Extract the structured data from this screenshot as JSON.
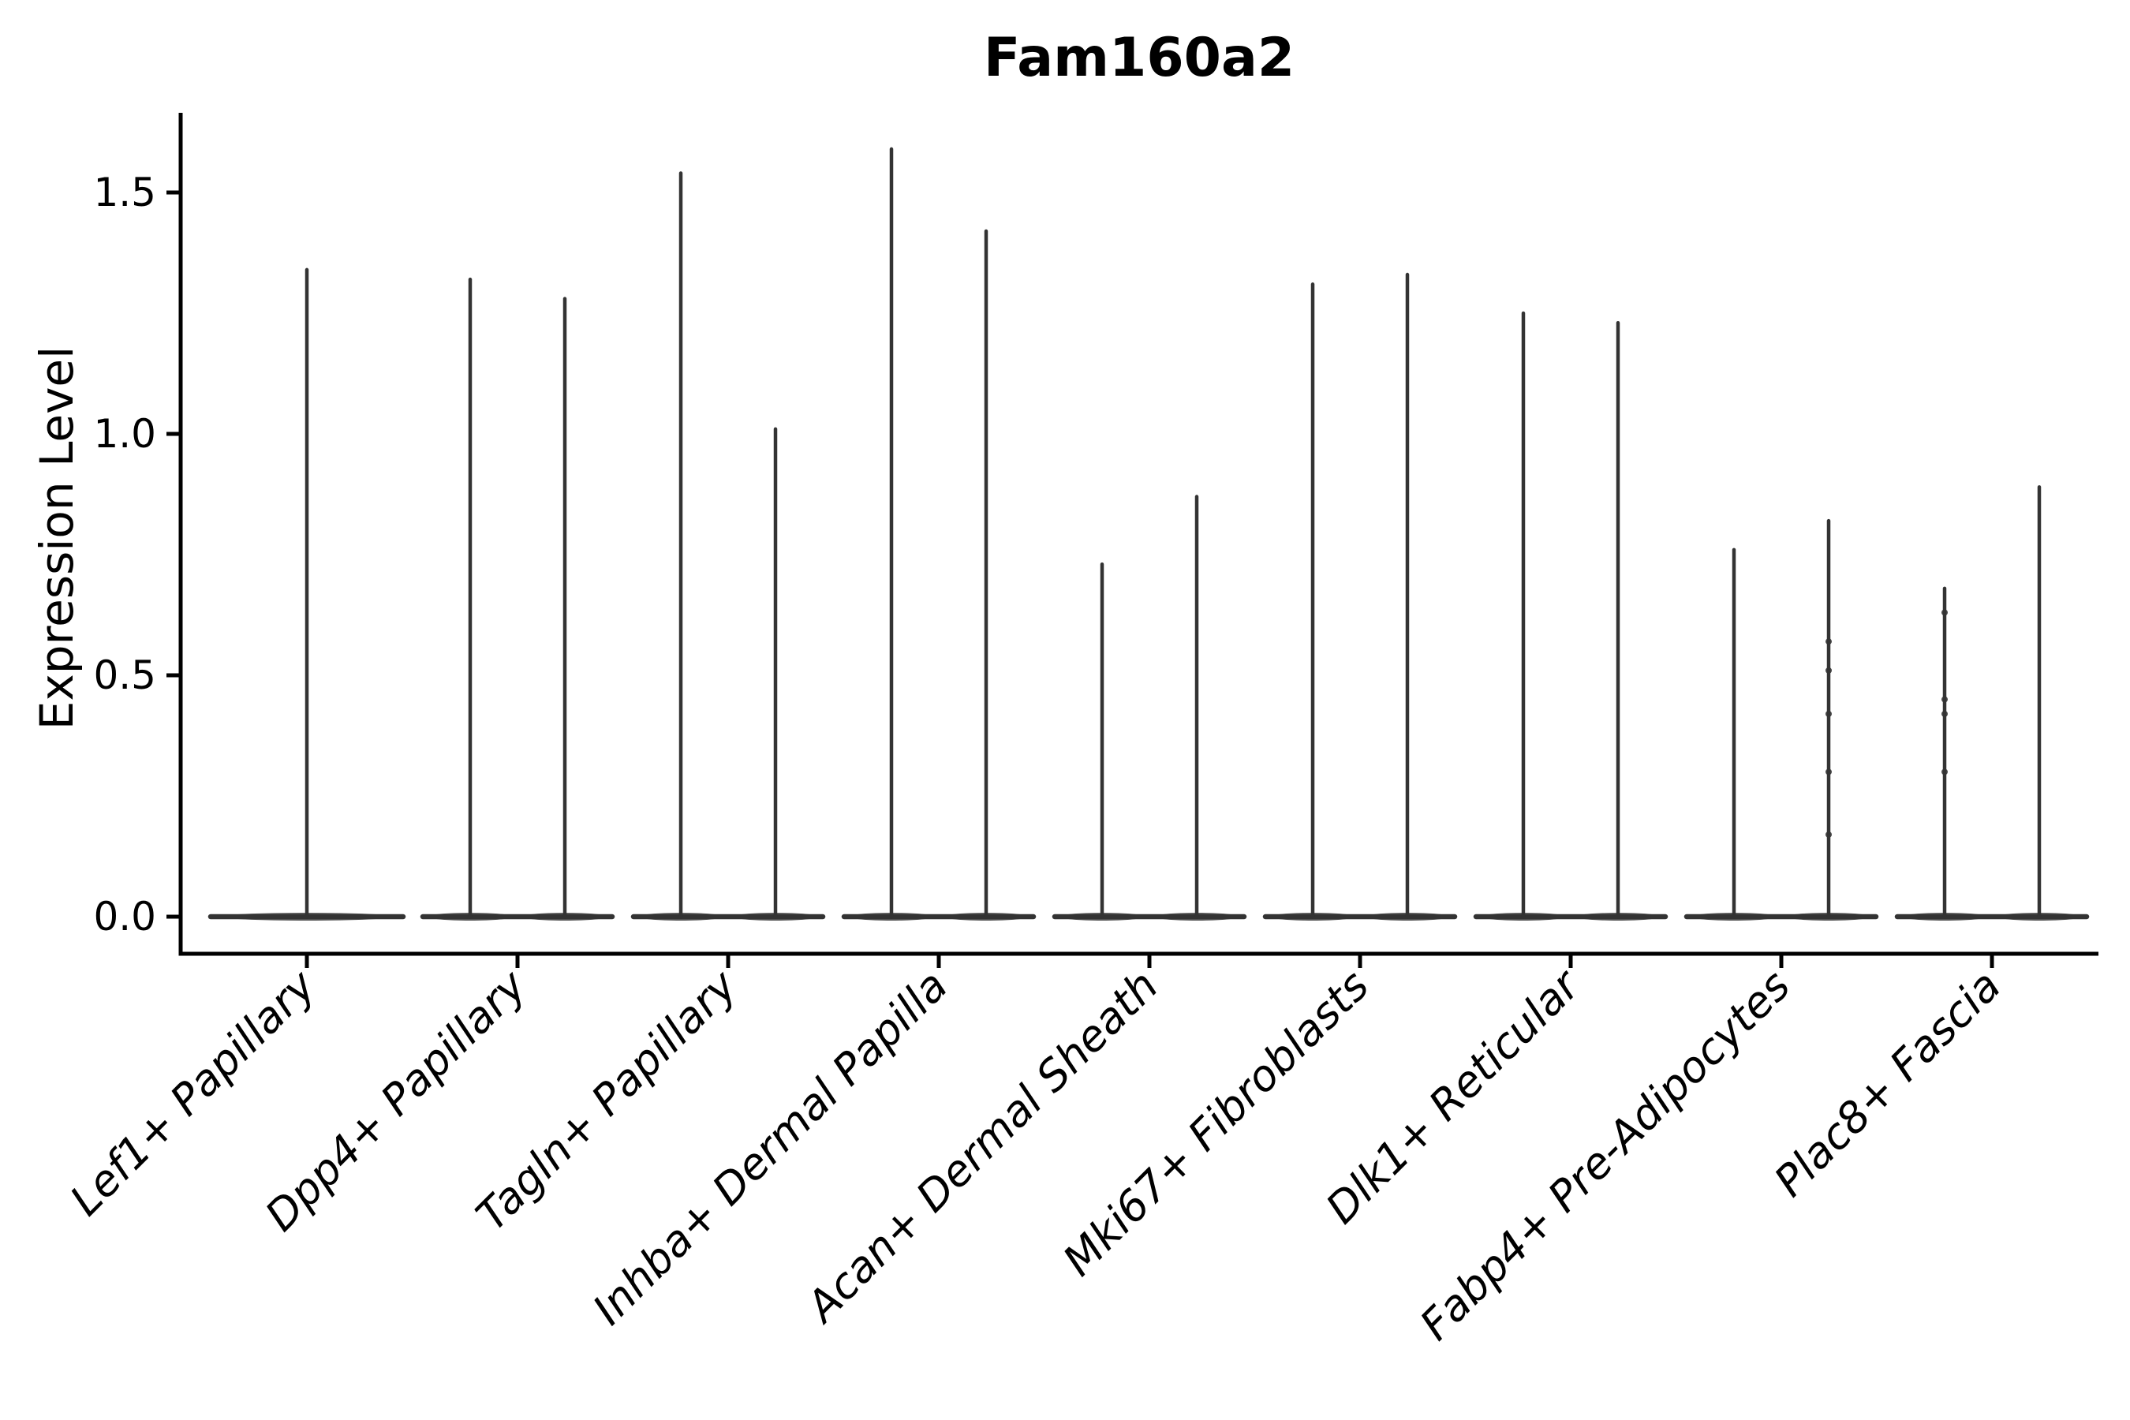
{
  "page": {
    "background": "#ffffff"
  },
  "chart_data": {
    "type": "violin",
    "title": "Fam160a2",
    "ylabel": "Expression Level",
    "xlabel": "",
    "grid": false,
    "legend": "none",
    "ylim": [
      -0.08,
      1.67
    ],
    "ytick_labels": [
      "0.0",
      "0.5",
      "1.0",
      "1.5"
    ],
    "ytick_values": [
      0.0,
      0.5,
      1.0,
      1.5
    ],
    "x_axis_label_rotation_deg": 45,
    "violin_style": "zero-inflated: wide flat base at 0 with thin vertical spike up to max expression",
    "categories": [
      "Lef1+ Papillary",
      "Dpp4+ Papillary",
      "Tagln+ Papillary",
      "Inhba+ Dermal Papilla",
      "Acan+ Dermal Sheath",
      "Mki67+ Fibroblasts",
      "Dlk1+ Reticular",
      "Fabp4+ Pre-Adipocytes",
      "Plac8+ Fascia"
    ],
    "violins": [
      {
        "category": "Lef1+ Papillary",
        "groups": [
          {
            "max": 1.34,
            "dots": []
          }
        ]
      },
      {
        "category": "Dpp4+ Papillary",
        "groups": [
          {
            "max": 1.32,
            "dots": []
          },
          {
            "max": 1.28,
            "dots": []
          }
        ]
      },
      {
        "category": "Tagln+ Papillary",
        "groups": [
          {
            "max": 1.54,
            "dots": []
          },
          {
            "max": 1.01,
            "dots": []
          }
        ]
      },
      {
        "category": "Inhba+ Dermal Papilla",
        "groups": [
          {
            "max": 1.59,
            "dots": []
          },
          {
            "max": 1.42,
            "dots": []
          }
        ]
      },
      {
        "category": "Acan+ Dermal Sheath",
        "groups": [
          {
            "max": 0.73,
            "dots": []
          },
          {
            "max": 0.87,
            "dots": []
          }
        ]
      },
      {
        "category": "Mki67+ Fibroblasts",
        "groups": [
          {
            "max": 1.31,
            "dots": []
          },
          {
            "max": 1.33,
            "dots": []
          }
        ]
      },
      {
        "category": "Dlk1+ Reticular",
        "groups": [
          {
            "max": 1.25,
            "dots": []
          },
          {
            "max": 1.23,
            "dots": []
          }
        ]
      },
      {
        "category": "Fabp4+ Pre-Adipocytes",
        "groups": [
          {
            "max": 0.76,
            "dots": []
          },
          {
            "max": 0.82,
            "dots": [
              0.57,
              0.51,
              0.42,
              0.3,
              0.17
            ]
          }
        ]
      },
      {
        "category": "Plac8+ Fascia",
        "groups": [
          {
            "max": 0.68,
            "dots": [
              0.63,
              0.45,
              0.42,
              0.3
            ]
          },
          {
            "max": 0.89,
            "dots": []
          }
        ]
      }
    ],
    "colors": {
      "violin_line": "#333333",
      "axis": "#000000",
      "text": "#000000",
      "background": "#ffffff"
    }
  }
}
